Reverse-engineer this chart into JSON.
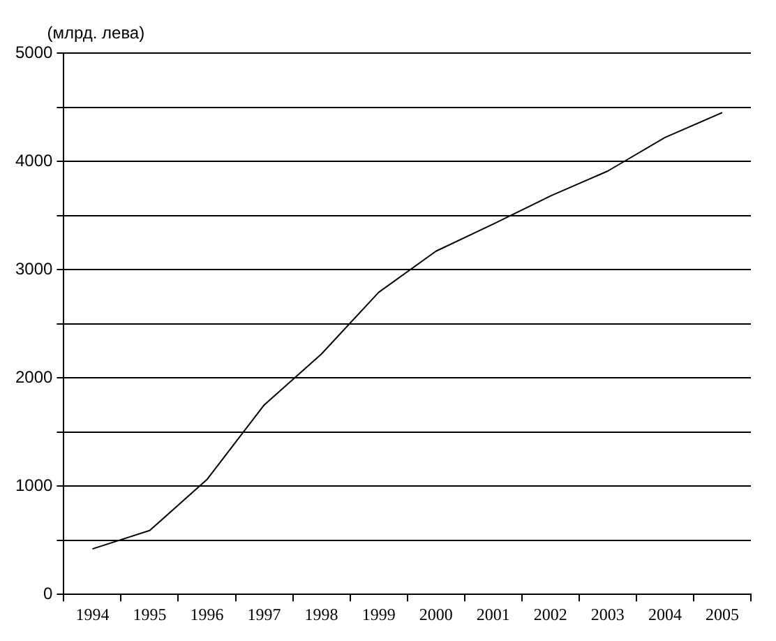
{
  "chart_data": {
    "type": "line",
    "ylabel": "(млрд. лева)",
    "categories": [
      "1994",
      "1995",
      "1996",
      "1997",
      "1998",
      "1999",
      "2000",
      "2001",
      "2002",
      "2003",
      "2004",
      "2005"
    ],
    "series": [
      {
        "color": "#000000",
        "values": [
          420,
          590,
          1060,
          1750,
          2220,
          2790,
          3170,
          3420,
          3680,
          3910,
          4220,
          4450
        ]
      }
    ],
    "ylim": [
      0,
      5000
    ],
    "yticks": [
      0,
      {
        "value": 500,
        "label": null
      },
      1000,
      {
        "value": 1500,
        "label": null
      },
      2000,
      {
        "value": 2500,
        "label": null
      },
      3000,
      {
        "value": 3500,
        "label": null
      },
      4000,
      {
        "value": 4500,
        "label": null
      },
      5000
    ],
    "grid": "y",
    "legend": false,
    "marker": "none",
    "line_style": "solid"
  }
}
